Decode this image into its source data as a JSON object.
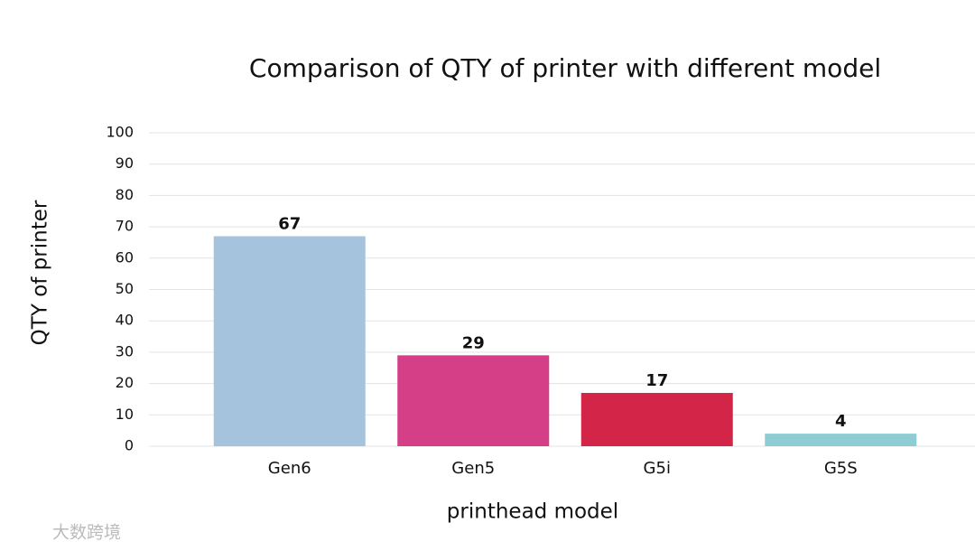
{
  "chart_data": {
    "type": "bar",
    "title": "Comparison of QTY of printer with different model",
    "x_label": "printhead model",
    "y_label": "QTY of printer",
    "categories": [
      "Gen6",
      "Gen5",
      "G5i",
      "G5S"
    ],
    "values": [
      67,
      29,
      17,
      4
    ],
    "colors": [
      "#a5c3dc",
      "#d43f87",
      "#d22547",
      "#8ecdd3"
    ],
    "ylim": [
      0,
      100
    ],
    "yticks": [
      0,
      10,
      20,
      30,
      40,
      50,
      60,
      70,
      80,
      90,
      100
    ],
    "grid": true,
    "watermark": "大数跨境"
  }
}
